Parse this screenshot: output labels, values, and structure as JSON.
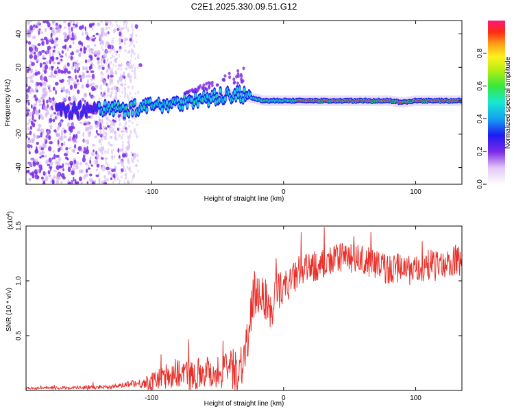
{
  "figure_title": "C2E1.2025.330.09.51.G12",
  "chart_data": [
    {
      "type": "heatmap",
      "title": "C2E1.2025.330.09.51.G12",
      "xlabel": "Height of straight line (km)",
      "ylabel": "Frequency (Hz)",
      "xlim": [
        -195,
        135
      ],
      "ylim": [
        -50,
        48
      ],
      "xticks": [
        -100,
        0,
        100
      ],
      "yticks": [
        -40,
        -20,
        0,
        20,
        40
      ],
      "ridge": {
        "description_points_x": [
          -165,
          -140,
          -120,
          -100,
          -80,
          -60,
          -45,
          -35,
          -25,
          -15,
          0,
          20,
          50,
          80,
          90,
          100,
          135
        ],
        "description_points_y": [
          -6,
          -4,
          -5,
          -3,
          -1,
          1,
          3,
          4,
          2,
          0,
          0,
          0,
          0,
          0,
          -1,
          0,
          0
        ],
        "peak_amplitude_x_range": [
          10,
          135
        ]
      },
      "colorbar": {
        "label": "Normalized spectral amplitude",
        "range": [
          0,
          1
        ],
        "ticks": [
          0.0,
          0.2,
          0.4,
          0.6,
          0.8
        ],
        "tick_labels": [
          "0.0",
          "0.2",
          "0.4",
          "0.6",
          "0.8"
        ]
      }
    },
    {
      "type": "line",
      "xlabel": "Height of straight line (km)",
      "ylabel": "SNR (10 * v/v)",
      "y_multiplier_label": "(x10",
      "y_multiplier_exponent": "4",
      "y_multiplier_close": ")",
      "xlim": [
        -195,
        135
      ],
      "ylim": [
        0,
        1.5
      ],
      "xticks": [
        -100,
        0,
        100
      ],
      "yticks": [
        0.5,
        1.0,
        1.5
      ],
      "ytick_labels": [
        "0.5",
        "1.0",
        "1.5"
      ],
      "color": "#e8302a",
      "series": [
        {
          "name": "SNR",
          "x": [
            -195,
            -180,
            -160,
            -140,
            -125,
            -115,
            -110,
            -100,
            -90,
            -80,
            -70,
            -60,
            -50,
            -40,
            -35,
            -30,
            -25,
            -22,
            -20,
            -15,
            -10,
            -5,
            0,
            5,
            10,
            20,
            30,
            40,
            50,
            60,
            70,
            80,
            90,
            100,
            110,
            120,
            130,
            135
          ],
          "values": [
            0.02,
            0.02,
            0.025,
            0.03,
            0.04,
            0.07,
            0.06,
            0.08,
            0.12,
            0.17,
            0.14,
            0.18,
            0.16,
            0.2,
            0.18,
            0.3,
            0.6,
            0.85,
            0.9,
            0.88,
            0.7,
            0.9,
            0.95,
            0.98,
            1.05,
            1.12,
            1.15,
            1.2,
            1.22,
            1.18,
            1.15,
            1.1,
            1.12,
            1.08,
            1.15,
            1.12,
            1.2,
            1.15
          ],
          "noise": [
            0.01,
            0.01,
            0.015,
            0.02,
            0.02,
            0.03,
            0.04,
            0.08,
            0.12,
            0.14,
            0.14,
            0.15,
            0.16,
            0.18,
            0.2,
            0.22,
            0.3,
            0.25,
            0.22,
            0.2,
            0.2,
            0.18,
            0.15,
            0.15,
            0.15,
            0.14,
            0.14,
            0.14,
            0.14,
            0.14,
            0.14,
            0.14,
            0.14,
            0.14,
            0.14,
            0.14,
            0.14,
            0.14
          ]
        }
      ]
    }
  ]
}
